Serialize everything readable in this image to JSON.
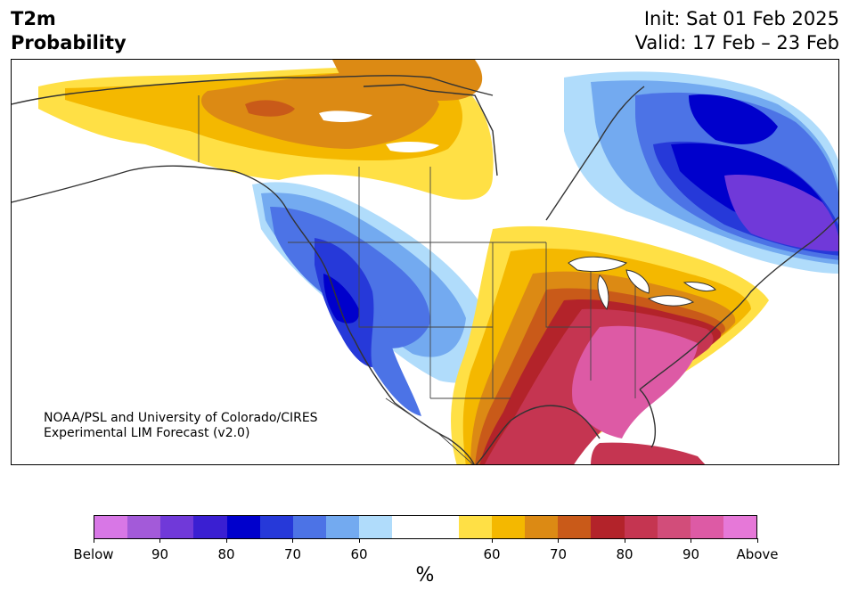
{
  "header": {
    "variable": "T2m",
    "product": "Probability",
    "init": "Init: Sat 01 Feb 2025",
    "valid": "Valid: 17 Feb – 23 Feb"
  },
  "credit": {
    "line1": "NOAA/PSL and University of Colorado/CIRES",
    "line2": "Experimental LIM Forecast (v2.0)"
  },
  "colorbar": {
    "unit": "%",
    "colors": [
      "#d877e6",
      "#a35ad9",
      "#7039d9",
      "#3a1fd2",
      "#0000cc",
      "#2639d9",
      "#4c73e6",
      "#73aaf0",
      "#b0dcfb",
      "#ffffff",
      "#ffffff",
      "#ffe045",
      "#f4b800",
      "#dc8a14",
      "#c95a19",
      "#b3232a",
      "#c53551",
      "#d24d7a",
      "#dd5aa5",
      "#e678d8"
    ],
    "tick_labels": [
      "Below",
      "90",
      "80",
      "70",
      "60",
      "60",
      "70",
      "80",
      "90",
      "Above"
    ],
    "tick_index": [
      0,
      2,
      4,
      6,
      8,
      12,
      14,
      16,
      18,
      20
    ]
  },
  "map": {
    "region": "North America",
    "colors": {
      "below_strong": "#0000cc",
      "below_mid": "#2639d9",
      "below_light": "#4c73e6",
      "below_pale": "#73aaf0",
      "below_faint": "#b0dcfb",
      "below_purple": "#7039d9",
      "above_faint": "#ffe045",
      "above_light": "#f4b800",
      "above_mid": "#dc8a14",
      "above_orange": "#c95a19",
      "above_red": "#b3232a",
      "above_crimson": "#c53551",
      "above_pink": "#dd5aa5",
      "land_line": "#333333"
    }
  }
}
